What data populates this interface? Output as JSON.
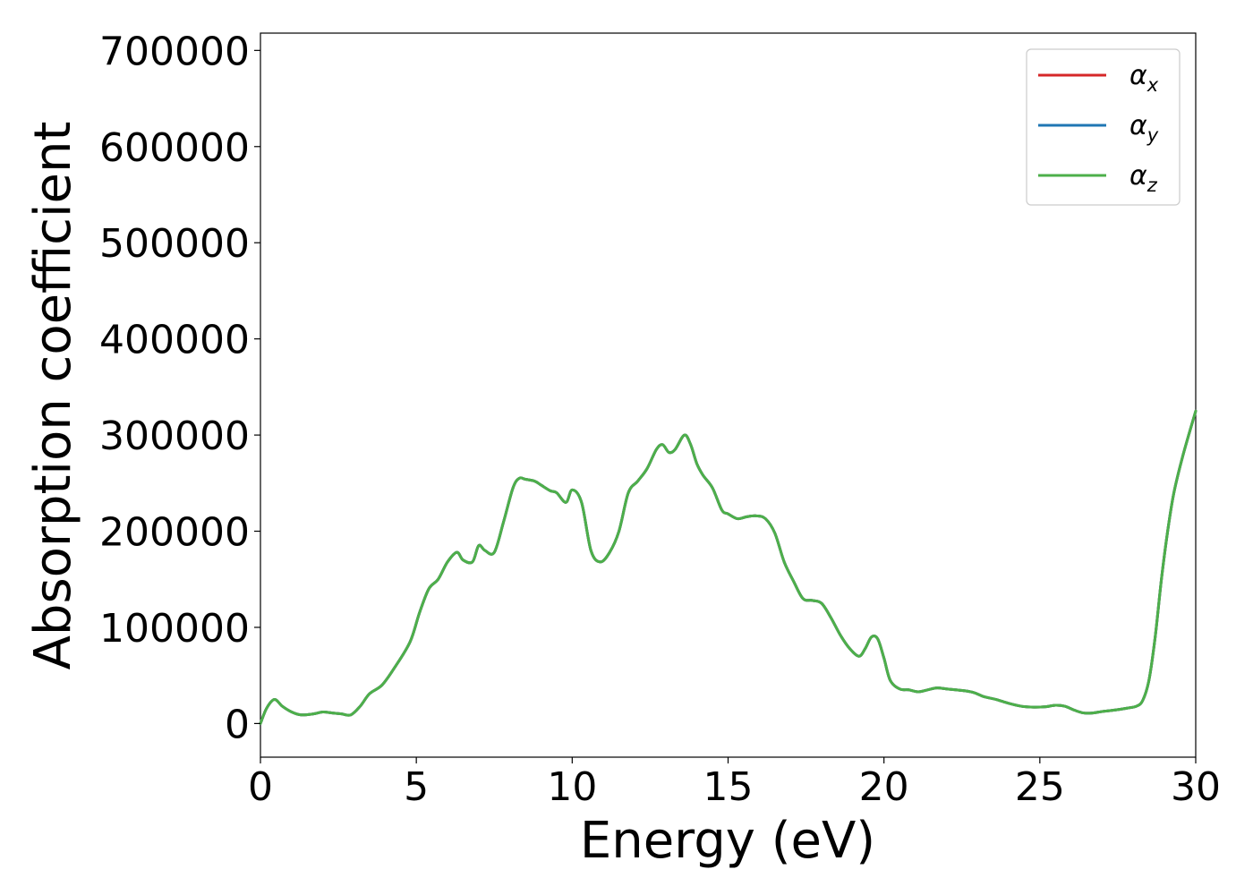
{
  "chart_data": {
    "type": "line",
    "xlabel": "Energy (eV)",
    "ylabel": "Absorption coefficient",
    "xlim": [
      0,
      30
    ],
    "ylim": [
      -35000,
      718000
    ],
    "x_ticks": [
      0,
      5,
      10,
      15,
      20,
      25,
      30
    ],
    "y_ticks": [
      0,
      100000,
      200000,
      300000,
      400000,
      500000,
      600000,
      700000
    ],
    "x_tick_labels": [
      "0",
      "5",
      "10",
      "15",
      "20",
      "25",
      "30"
    ],
    "y_tick_labels": [
      "0",
      "100000",
      "200000",
      "300000",
      "400000",
      "500000",
      "600000",
      "700000"
    ],
    "grid": false,
    "legend_position": "top-right",
    "x": [
      0,
      0.2,
      0.45,
      0.7,
      1.0,
      1.3,
      1.7,
      2.0,
      2.3,
      2.6,
      2.9,
      3.2,
      3.5,
      3.9,
      4.3,
      4.8,
      5.1,
      5.4,
      5.7,
      6.0,
      6.3,
      6.5,
      6.8,
      7.0,
      7.2,
      7.5,
      7.8,
      8.1,
      8.3,
      8.5,
      8.8,
      9.0,
      9.3,
      9.5,
      9.8,
      10.0,
      10.3,
      10.6,
      10.9,
      11.2,
      11.5,
      11.8,
      12.1,
      12.4,
      12.7,
      12.9,
      13.1,
      13.3,
      13.6,
      13.8,
      14.0,
      14.2,
      14.5,
      14.8,
      15.0,
      15.3,
      15.6,
      15.9,
      16.2,
      16.5,
      16.8,
      17.1,
      17.4,
      17.7,
      18.0,
      18.3,
      18.6,
      18.9,
      19.2,
      19.4,
      19.6,
      19.8,
      20.0,
      20.2,
      20.5,
      20.8,
      21.1,
      21.4,
      21.7,
      22.0,
      22.3,
      22.6,
      22.9,
      23.2,
      23.6,
      24.0,
      24.4,
      24.8,
      25.2,
      25.5,
      25.8,
      26.1,
      26.4,
      26.7,
      27.0,
      27.4,
      27.8,
      28.1,
      28.3,
      28.5,
      28.7,
      28.9,
      29.1,
      29.3,
      29.6,
      30.0
    ],
    "series": [
      {
        "name": "α_x",
        "color": "#d62728",
        "y": [
          0,
          16000,
          25000,
          18000,
          12000,
          9000,
          10000,
          12000,
          11000,
          10000,
          9000,
          18000,
          31000,
          40000,
          58000,
          85000,
          115000,
          140000,
          150000,
          168000,
          178000,
          170000,
          168000,
          185000,
          180000,
          178000,
          210000,
          245000,
          255000,
          254000,
          252000,
          248000,
          242000,
          240000,
          230000,
          243000,
          230000,
          180000,
          168000,
          178000,
          200000,
          240000,
          252000,
          265000,
          285000,
          290000,
          282000,
          285000,
          300000,
          290000,
          270000,
          258000,
          245000,
          222000,
          218000,
          213000,
          215000,
          216000,
          213000,
          198000,
          168000,
          148000,
          130000,
          128000,
          125000,
          110000,
          92000,
          78000,
          70000,
          78000,
          90000,
          88000,
          68000,
          45000,
          36000,
          35000,
          33000,
          35000,
          37000,
          36000,
          35000,
          34000,
          32000,
          28000,
          25000,
          21000,
          18000,
          17000,
          17500,
          19000,
          18000,
          14000,
          11000,
          11000,
          12500,
          14000,
          16000,
          18000,
          24000,
          45000,
          90000,
          150000,
          200000,
          240000,
          280000,
          325000
        ]
      },
      {
        "name": "α_y",
        "color": "#1f77b4",
        "y": [
          0,
          16000,
          25000,
          18000,
          12000,
          9000,
          10000,
          12000,
          11000,
          10000,
          9000,
          18000,
          31000,
          40000,
          58000,
          85000,
          115000,
          140000,
          150000,
          168000,
          178000,
          170000,
          168000,
          185000,
          180000,
          178000,
          210000,
          245000,
          255000,
          254000,
          252000,
          248000,
          242000,
          240000,
          230000,
          243000,
          230000,
          180000,
          168000,
          178000,
          200000,
          240000,
          252000,
          265000,
          285000,
          290000,
          282000,
          285000,
          300000,
          290000,
          270000,
          258000,
          245000,
          222000,
          218000,
          213000,
          215000,
          216000,
          213000,
          198000,
          168000,
          148000,
          130000,
          128000,
          125000,
          110000,
          92000,
          78000,
          70000,
          78000,
          90000,
          88000,
          68000,
          45000,
          36000,
          35000,
          33000,
          35000,
          37000,
          36000,
          35000,
          34000,
          32000,
          28000,
          25000,
          21000,
          18000,
          17000,
          17500,
          19000,
          18000,
          14000,
          11000,
          11000,
          12500,
          14000,
          16000,
          18000,
          24000,
          45000,
          90000,
          150000,
          200000,
          240000,
          280000,
          325000
        ]
      },
      {
        "name": "α_z",
        "color": "#4daf4a",
        "y": [
          0,
          16000,
          25000,
          18000,
          12000,
          9000,
          10000,
          12000,
          11000,
          10000,
          9000,
          18000,
          31000,
          40000,
          58000,
          85000,
          115000,
          140000,
          150000,
          168000,
          178000,
          170000,
          168000,
          185000,
          180000,
          178000,
          210000,
          245000,
          255000,
          254000,
          252000,
          248000,
          242000,
          240000,
          230000,
          243000,
          230000,
          180000,
          168000,
          178000,
          200000,
          240000,
          252000,
          265000,
          285000,
          290000,
          282000,
          285000,
          300000,
          290000,
          270000,
          258000,
          245000,
          222000,
          218000,
          213000,
          215000,
          216000,
          213000,
          198000,
          168000,
          148000,
          130000,
          128000,
          125000,
          110000,
          92000,
          78000,
          70000,
          78000,
          90000,
          88000,
          68000,
          45000,
          36000,
          35000,
          33000,
          35000,
          37000,
          36000,
          35000,
          34000,
          32000,
          28000,
          25000,
          21000,
          18000,
          17000,
          17500,
          19000,
          18000,
          14000,
          11000,
          11000,
          12500,
          14000,
          16000,
          18000,
          24000,
          45000,
          90000,
          150000,
          200000,
          240000,
          280000,
          325000
        ]
      }
    ],
    "legend": [
      {
        "symbol": "α",
        "sub": "x"
      },
      {
        "symbol": "α",
        "sub": "y"
      },
      {
        "symbol": "α",
        "sub": "z"
      }
    ]
  }
}
